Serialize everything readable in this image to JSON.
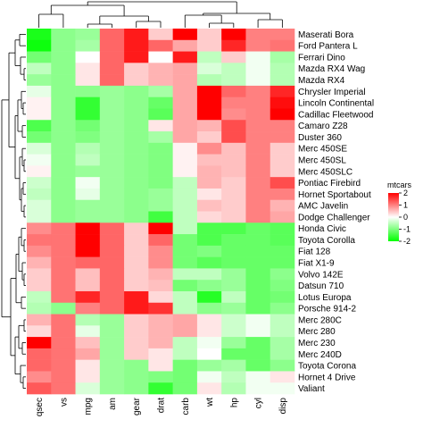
{
  "chart_data": {
    "type": "heatmap",
    "columns": [
      "qsec",
      "vs",
      "mpg",
      "am",
      "gear",
      "drat",
      "carb",
      "wt",
      "hp",
      "cyl",
      "disp"
    ],
    "rows": [
      "Maserati Bora",
      "Ford Pantera L",
      "Ferrari Dino",
      "Mazda RX4 Wag",
      "Mazda RX4",
      "Chrysler Imperial",
      "Lincoln Continental",
      "Cadillac Fleetwood",
      "Camaro Z28",
      "Duster 360",
      "Merc 450SE",
      "Merc 450SL",
      "Merc 450SLC",
      "Pontiac Firebird",
      "Hornet Sportabout",
      "AMC Javelin",
      "Dodge Challenger",
      "Honda Civic",
      "Toyota Corolla",
      "Fiat 128",
      "Fiat X1-9",
      "Volvo 142E",
      "Datsun 710",
      "Lotus Europa",
      "Porsche 914-2",
      "Merc 280C",
      "Merc 280",
      "Merc 230",
      "Merc 240D",
      "Toyota Corona",
      "Hornet 4 Drive",
      "Valiant"
    ],
    "values": [
      [
        -1.8,
        -0.9,
        -0.8,
        1.2,
        1.8,
        0.4,
        3.2,
        0.4,
        2.7,
        1.0,
        1.0
      ],
      [
        -1.9,
        -0.9,
        -0.7,
        1.2,
        1.8,
        1.2,
        0.7,
        0.4,
        1.7,
        1.0,
        1.1
      ],
      [
        -1.1,
        -0.9,
        0.0,
        1.2,
        1.8,
        0.0,
        1.8,
        -0.5,
        0.4,
        -0.1,
        -0.7
      ],
      [
        -0.5,
        -0.9,
        0.2,
        1.2,
        0.4,
        0.6,
        0.7,
        -0.3,
        -0.5,
        -0.1,
        -0.6
      ],
      [
        -0.8,
        -0.9,
        0.2,
        1.2,
        0.4,
        0.6,
        0.7,
        -0.6,
        -0.5,
        -0.1,
        -0.6
      ],
      [
        -0.2,
        -0.9,
        -0.9,
        -0.8,
        -0.9,
        -0.7,
        0.7,
        2.2,
        1.2,
        1.0,
        1.7
      ],
      [
        0.1,
        -0.9,
        -1.6,
        -0.8,
        -0.9,
        -1.2,
        0.7,
        2.3,
        1.0,
        1.0,
        1.9
      ],
      [
        0.1,
        -0.9,
        -1.6,
        -0.8,
        -0.9,
        -1.3,
        0.7,
        2.1,
        0.9,
        1.0,
        2.0
      ],
      [
        -1.4,
        -0.9,
        -1.1,
        -0.8,
        -0.9,
        0.2,
        0.7,
        0.6,
        1.4,
        1.0,
        1.0
      ],
      [
        -1.1,
        -0.9,
        -1.0,
        -0.8,
        -0.9,
        -0.7,
        0.7,
        0.4,
        1.4,
        1.0,
        1.0
      ],
      [
        -0.3,
        -0.9,
        -0.6,
        -0.8,
        -0.9,
        -1.0,
        0.1,
        0.9,
        0.5,
        1.0,
        0.4
      ],
      [
        -0.1,
        -0.9,
        -0.5,
        -0.8,
        -0.9,
        -1.0,
        0.1,
        0.5,
        0.5,
        1.0,
        0.4
      ],
      [
        0.1,
        -0.9,
        -0.8,
        -0.8,
        -0.9,
        -1.0,
        0.1,
        0.6,
        0.5,
        1.0,
        0.4
      ],
      [
        -0.4,
        -0.9,
        -0.1,
        -0.8,
        -0.9,
        -1.0,
        -0.5,
        0.6,
        0.4,
        1.0,
        1.4
      ],
      [
        -0.5,
        -0.9,
        -0.2,
        -0.8,
        -0.9,
        -0.8,
        -0.5,
        0.2,
        0.4,
        1.0,
        1.0
      ],
      [
        -0.3,
        -0.9,
        -0.8,
        -0.8,
        -0.9,
        -0.8,
        -0.5,
        0.5,
        0.4,
        1.0,
        0.6
      ],
      [
        -0.3,
        -0.9,
        -0.8,
        -0.8,
        -0.9,
        -1.5,
        -0.5,
        0.3,
        0.4,
        1.0,
        0.7
      ],
      [
        0.9,
        1.1,
        2.0,
        1.2,
        0.4,
        2.5,
        -0.5,
        -1.4,
        -1.4,
        -1.2,
        -1.3
      ],
      [
        1.1,
        1.1,
        2.3,
        1.2,
        0.4,
        1.2,
        -1.1,
        -1.4,
        -1.2,
        -1.2,
        -1.3
      ],
      [
        0.9,
        1.1,
        2.0,
        1.2,
        0.4,
        0.9,
        -1.1,
        -1.0,
        -1.2,
        -1.2,
        -1.2
      ],
      [
        0.6,
        1.1,
        1.2,
        1.2,
        0.4,
        0.9,
        -1.1,
        -1.3,
        -1.2,
        -1.2,
        -1.2
      ],
      [
        0.4,
        1.1,
        0.5,
        1.2,
        0.4,
        0.6,
        -0.5,
        -0.5,
        -0.8,
        -1.2,
        -0.9
      ],
      [
        0.4,
        1.1,
        0.5,
        1.2,
        0.4,
        0.5,
        -1.1,
        -0.9,
        -0.8,
        -1.2,
        -1.0
      ],
      [
        -0.5,
        1.1,
        1.7,
        1.2,
        1.8,
        0.3,
        -0.5,
        -1.7,
        -0.5,
        -1.2,
        -1.1
      ],
      [
        -0.6,
        -0.9,
        1.0,
        1.2,
        1.8,
        1.6,
        -0.5,
        -0.9,
        -0.8,
        -1.2,
        -0.9
      ],
      [
        0.6,
        1.1,
        -0.6,
        -0.8,
        0.4,
        0.6,
        0.7,
        0.2,
        -0.4,
        -0.1,
        -0.5
      ],
      [
        0.3,
        1.1,
        -0.2,
        -0.8,
        0.4,
        0.6,
        0.7,
        0.2,
        -0.4,
        -0.1,
        -0.5
      ],
      [
        2.8,
        1.1,
        0.5,
        -0.8,
        0.4,
        0.6,
        -0.5,
        -0.1,
        -0.8,
        -1.2,
        -0.7
      ],
      [
        1.2,
        1.1,
        0.7,
        -0.8,
        0.4,
        0.2,
        -0.5,
        0.0,
        -1.2,
        -1.2,
        -0.7
      ],
      [
        1.2,
        1.1,
        0.2,
        -0.8,
        -0.9,
        0.2,
        -1.1,
        -0.8,
        -0.7,
        -1.2,
        -0.9
      ],
      [
        0.9,
        1.1,
        0.2,
        -0.8,
        -0.9,
        -1.0,
        -1.1,
        -0.1,
        -0.5,
        -0.1,
        0.2
      ],
      [
        1.3,
        1.1,
        -0.3,
        -0.8,
        -0.9,
        -1.6,
        -1.1,
        0.2,
        -0.6,
        -0.1,
        -0.1
      ]
    ],
    "legend": {
      "title": "mtcars",
      "ticks": [
        2,
        1,
        0,
        -1,
        -2
      ],
      "tick_labels": [
        "2",
        "1",
        "0",
        "-1",
        "-2"
      ],
      "range": [
        -2,
        2
      ],
      "colors": {
        "low": "#00ff00",
        "mid": "#ffffff",
        "high": "#ff0000"
      },
      "placement": "right"
    },
    "dendrograms": {
      "rows": "left",
      "columns": "top"
    }
  }
}
